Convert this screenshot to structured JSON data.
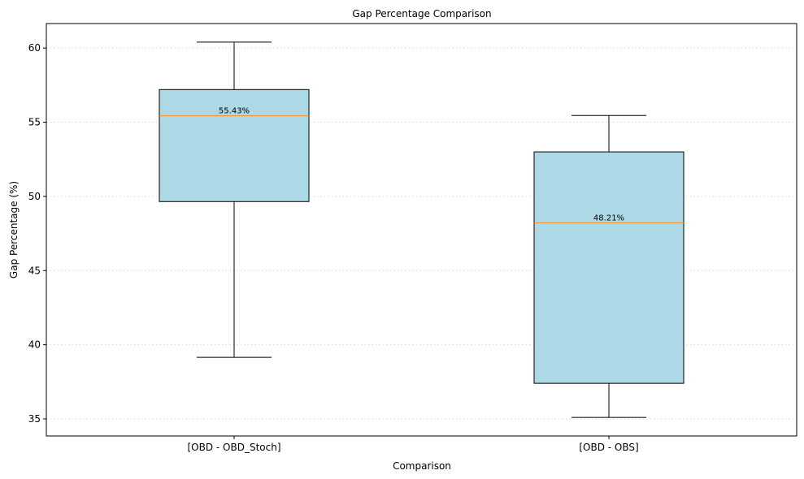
{
  "chart_data": {
    "type": "box",
    "title": "Gap Percentage Comparison",
    "xlabel": "Comparison",
    "ylabel": "Gap Percentage (%)",
    "ylim": [
      33.85,
      61.65
    ],
    "yticks": [
      "35",
      "40",
      "45",
      "50",
      "55",
      "60"
    ],
    "grid": "y-dotted",
    "box_color": "#add8e6",
    "median_color": "#ff8c1a",
    "categories": [
      "[OBD - OBD_Stoch]",
      "[OBD - OBS]"
    ],
    "boxes": [
      {
        "category": "[OBD - OBD_Stoch]",
        "whisker_low": 39.15,
        "q1": 49.65,
        "median": 55.43,
        "q3": 57.2,
        "whisker_high": 60.4,
        "median_label": "55.43%"
      },
      {
        "category": "[OBD - OBS]",
        "whisker_low": 35.1,
        "q1": 37.4,
        "median": 48.21,
        "q3": 53.0,
        "whisker_high": 55.45,
        "median_label": "48.21%"
      }
    ]
  }
}
